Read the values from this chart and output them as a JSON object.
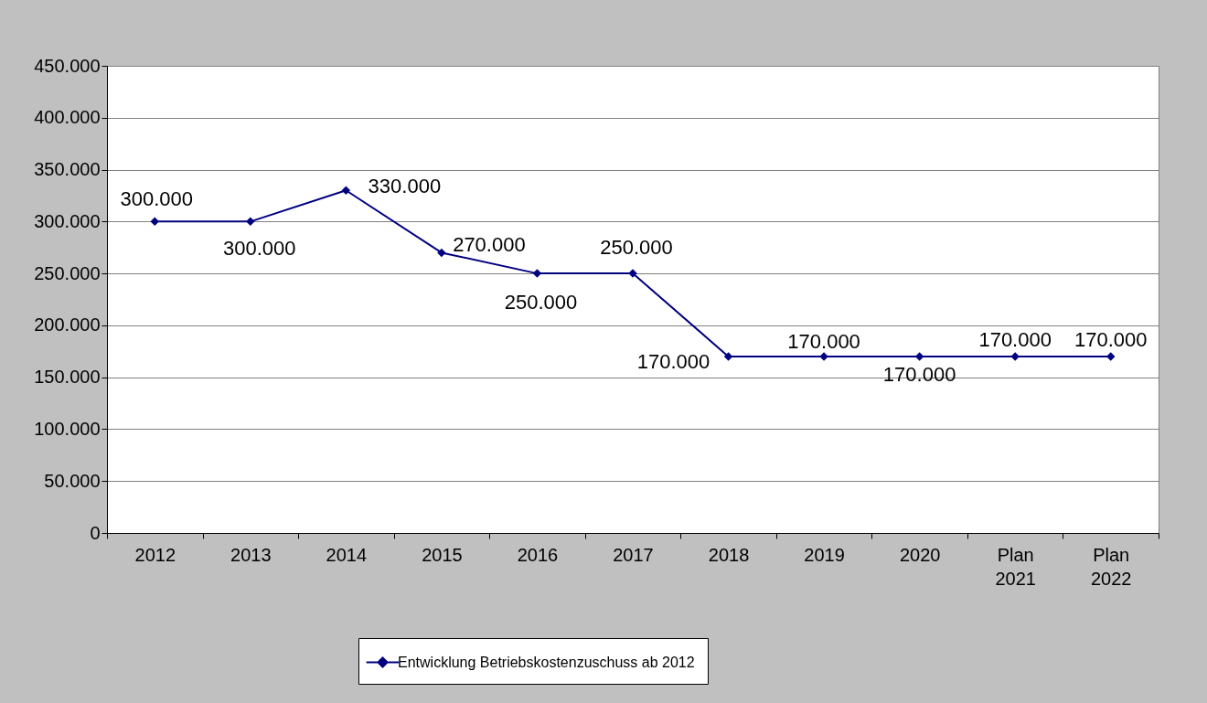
{
  "chart_data": {
    "type": "line",
    "categories": [
      "2012",
      "2013",
      "2014",
      "2015",
      "2016",
      "2017",
      "2018",
      "2019",
      "2020",
      "Plan 2021",
      "Plan 2022"
    ],
    "series": [
      {
        "name": "Entwicklung Betriebskostenzuschuss ab 2012",
        "color": "#000080",
        "values": [
          300000,
          300000,
          330000,
          270000,
          250000,
          250000,
          170000,
          170000,
          170000,
          170000,
          170000
        ],
        "value_labels": [
          "300.000",
          "300.000",
          "330.000",
          "270.000",
          "250.000",
          "250.000",
          "170.000",
          "170.000",
          "170.000",
          "170.000",
          "170.000"
        ]
      }
    ],
    "ylim": [
      0,
      450000
    ],
    "yticks": [
      0,
      {
        "value": 50000,
        "label": "50.000"
      },
      {
        "value": 100000,
        "label": "100.000"
      },
      {
        "value": 150000,
        "label": "150.000"
      },
      {
        "value": 200000,
        "label": "200.000"
      },
      {
        "value": 250000,
        "label": "250.000"
      },
      {
        "value": 300000,
        "label": "300.000"
      },
      {
        "value": 350000,
        "label": "350.000"
      },
      {
        "value": 400000,
        "label": "400.000"
      },
      {
        "value": 450000,
        "label": "450.000"
      }
    ],
    "grid": "y",
    "legend": "bottom",
    "marker": "diamond"
  }
}
